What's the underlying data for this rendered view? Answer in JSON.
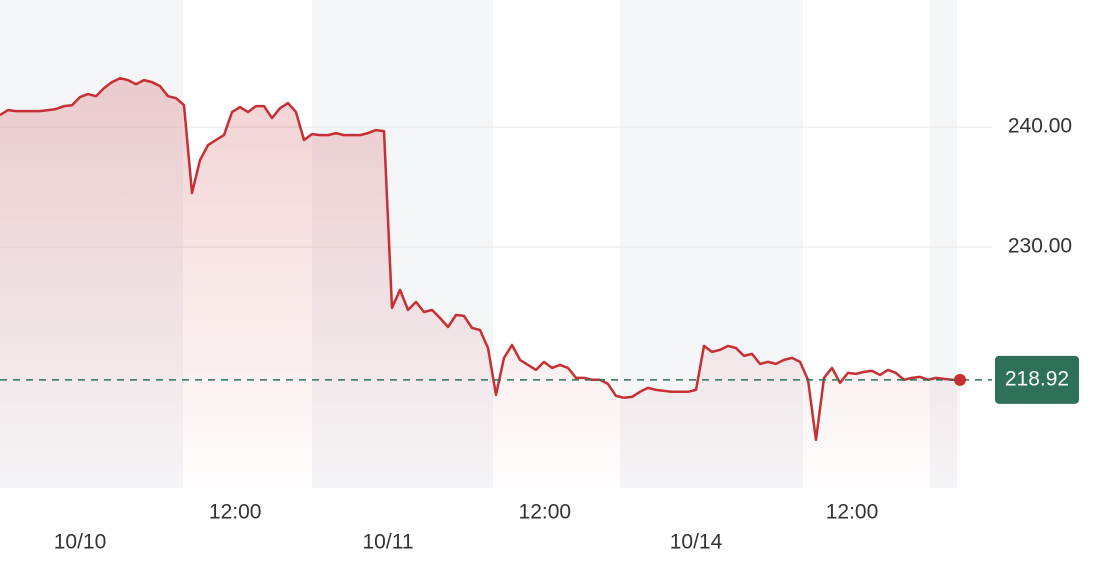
{
  "chart_data": {
    "type": "line",
    "values": [
      241.0,
      241.42,
      241.33,
      241.33,
      241.33,
      241.33,
      241.42,
      241.5,
      241.75,
      241.83,
      242.5,
      242.75,
      242.58,
      243.25,
      243.75,
      244.08,
      243.92,
      243.58,
      243.92,
      243.75,
      243.42,
      242.58,
      242.42,
      241.83,
      234.5,
      237.25,
      238.5,
      238.92,
      239.33,
      241.25,
      241.67,
      241.25,
      241.75,
      241.75,
      240.75,
      241.58,
      242.0,
      241.25,
      238.92,
      239.42,
      239.33,
      239.33,
      239.5,
      239.33,
      239.33,
      239.33,
      239.5,
      239.75,
      239.67,
      224.92,
      226.42,
      224.75,
      225.42,
      224.58,
      224.75,
      224.08,
      223.33,
      224.33,
      224.25,
      223.25,
      223.08,
      221.58,
      217.67,
      220.75,
      221.83,
      220.58,
      220.17,
      219.75,
      220.42,
      219.92,
      220.17,
      219.92,
      219.08,
      219.08,
      218.92,
      218.92,
      218.58,
      217.58,
      217.42,
      217.5,
      217.92,
      218.25,
      218.08,
      218.0,
      217.92,
      217.92,
      217.92,
      218.08,
      221.75,
      221.25,
      221.42,
      221.75,
      221.58,
      220.92,
      221.08,
      220.25,
      220.42,
      220.25,
      220.58,
      220.75,
      220.42,
      218.92,
      213.92,
      219.08,
      219.92,
      218.67,
      219.5,
      219.42,
      219.58,
      219.67,
      219.33,
      219.75,
      219.5,
      218.92,
      219.08,
      219.17,
      218.92,
      219.08,
      219.0,
      218.92,
      218.92
    ],
    "color": "#c62f33",
    "xlim": [
      0,
      124
    ],
    "xticks": [
      {
        "value": 10,
        "label": "10/10"
      },
      {
        "value": 29.4,
        "label": "12:00"
      },
      {
        "value": 48.5,
        "label": "10/11"
      },
      {
        "value": 68.1,
        "label": "12:00"
      },
      {
        "value": 87,
        "label": "10/14"
      },
      {
        "value": 106.5,
        "label": "12:00"
      }
    ],
    "ylim": [
      209.9,
      250.6
    ],
    "yticks": [
      {
        "value": 230,
        "label": "230.00"
      },
      {
        "value": 240,
        "label": "240.00"
      }
    ],
    "grid": true,
    "last_price": 218.92,
    "last_price_color": "#2f7059"
  }
}
